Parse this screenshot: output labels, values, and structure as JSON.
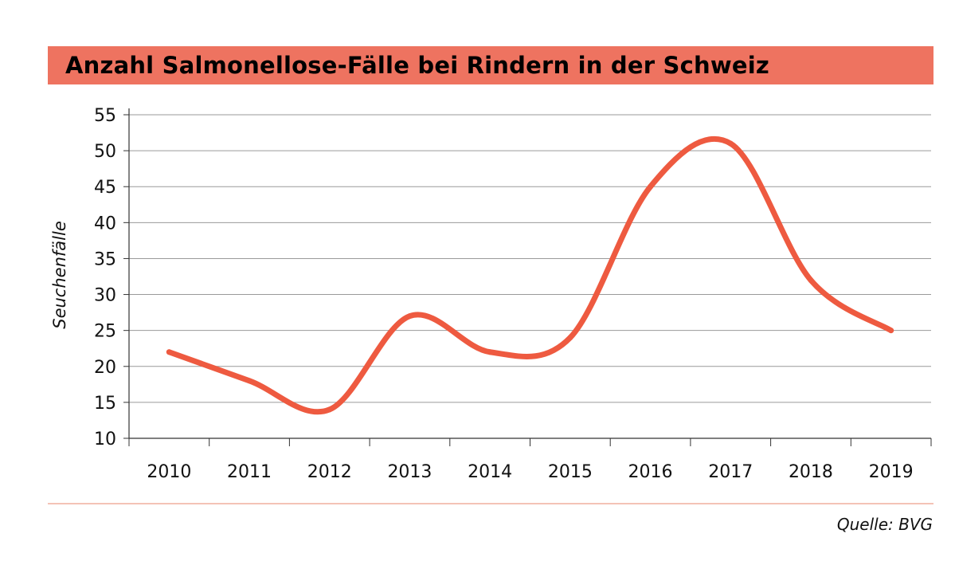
{
  "title": "Anzahl Salmonellose-Fälle bei Rindern in der Schweiz",
  "source": "Quelle: BVG",
  "colors": {
    "title_bar": "#ee7360",
    "line": "#ee5a40",
    "grid": "#9a9a9a",
    "footer_rule": "#f4c3b6"
  },
  "chart_data": {
    "type": "line",
    "title": "Anzahl Salmonellose-Fälle bei Rindern in der Schweiz",
    "xlabel": "",
    "ylabel": "Seuchenfälle",
    "categories": [
      "2010",
      "2011",
      "2012",
      "2013",
      "2014",
      "2015",
      "2016",
      "2017",
      "2018",
      "2019"
    ],
    "series": [
      {
        "name": "Seuchenfälle",
        "values": [
          22,
          18,
          14,
          27,
          22,
          24,
          45,
          51,
          32,
          25
        ]
      }
    ],
    "ylim": [
      10,
      55
    ],
    "yticks": [
      10,
      15,
      20,
      25,
      30,
      35,
      40,
      45,
      50,
      55
    ],
    "grid": true,
    "legend": "none"
  }
}
